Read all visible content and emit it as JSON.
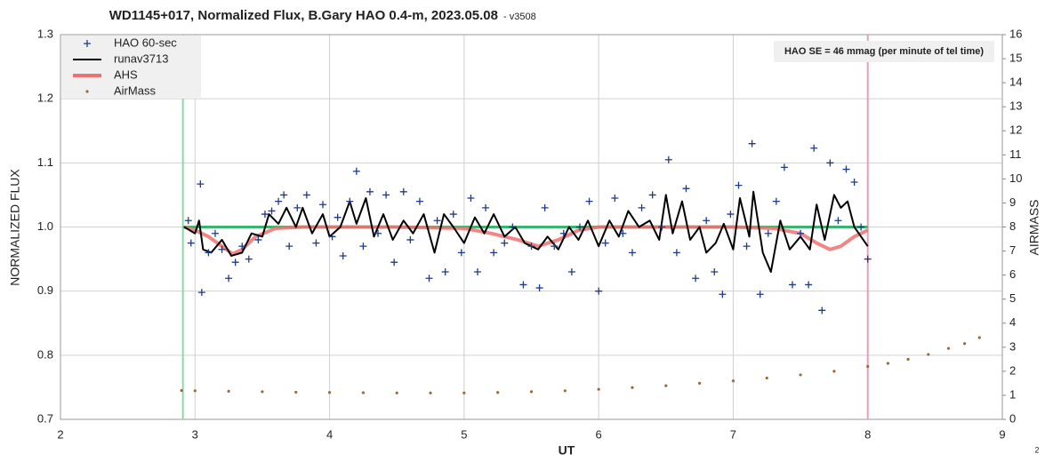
{
  "chart_data": {
    "type": "scatter",
    "title": "WD1145+017, Normalized Flux, B.Gary HAO 0.4-m, 2023.05.08",
    "subtitle": "- v3508",
    "annotation": "HAO SE =  46 mmag (per minute of tel time)",
    "page_number": "2",
    "xlabel": "UT",
    "ylabel": "NORMALIZED FLUX",
    "y2label": "AIRMASS",
    "xlim": [
      2,
      9
    ],
    "xticks": [
      2,
      3,
      4,
      5,
      6,
      7,
      8,
      9
    ],
    "ylim": [
      0.7,
      1.3
    ],
    "yticks": [
      0.7,
      0.8,
      0.9,
      {
        "value": 1,
        "label": "1.0"
      },
      1.1,
      1.2,
      1.3
    ],
    "y2lim": [
      0,
      16
    ],
    "y2ticks": [
      0,
      1,
      2,
      3,
      4,
      5,
      6,
      7,
      8,
      9,
      10,
      11,
      12,
      13,
      14,
      15,
      16
    ],
    "grid": true,
    "legend": "top-left",
    "vlines": [
      {
        "x": 2.91,
        "color": "#8fd6ac"
      },
      {
        "x": 8.0,
        "color": "#e8a0b4"
      }
    ],
    "hlines": [
      {
        "y": 1.0,
        "color": "#3cb371",
        "xrange": [
          2.91,
          8.0
        ]
      }
    ],
    "series": [
      {
        "name": "HAO 60-sec",
        "color": "#1f3a8a",
        "style": "plus",
        "x": [
          2.95,
          2.97,
          3.04,
          3.05,
          3.1,
          3.15,
          3.2,
          3.25,
          3.3,
          3.35,
          3.4,
          3.47,
          3.52,
          3.57,
          3.62,
          3.66,
          3.7,
          3.76,
          3.83,
          3.9,
          3.95,
          4.02,
          4.06,
          4.1,
          4.15,
          4.2,
          4.25,
          4.3,
          4.36,
          4.42,
          4.48,
          4.55,
          4.6,
          4.67,
          4.74,
          4.8,
          4.86,
          4.92,
          4.98,
          5.05,
          5.1,
          5.16,
          5.22,
          5.3,
          5.36,
          5.44,
          5.5,
          5.56,
          5.6,
          5.67,
          5.74,
          5.8,
          5.86,
          5.93,
          6.0,
          6.05,
          6.12,
          6.18,
          6.25,
          6.32,
          6.4,
          6.47,
          6.52,
          6.58,
          6.65,
          6.72,
          6.8,
          6.86,
          6.92,
          6.98,
          7.04,
          7.1,
          7.14,
          7.2,
          7.26,
          7.32,
          7.38,
          7.44,
          7.5,
          7.56,
          7.6,
          7.66,
          7.72,
          7.78,
          7.84,
          7.9,
          7.95,
          8.0
        ],
        "values": [
          1.01,
          0.975,
          1.067,
          0.898,
          0.96,
          0.99,
          0.965,
          0.92,
          0.945,
          0.97,
          0.95,
          0.98,
          1.02,
          1.025,
          1.04,
          1.05,
          0.97,
          1.03,
          1.05,
          0.975,
          1.035,
          0.985,
          1.015,
          0.955,
          1.04,
          1.087,
          0.97,
          1.055,
          0.99,
          1.05,
          0.945,
          1.055,
          0.98,
          1.04,
          0.92,
          1.01,
          0.93,
          1.02,
          0.96,
          1.045,
          0.93,
          1.03,
          0.96,
          0.975,
          1.0,
          0.91,
          0.97,
          0.905,
          1.03,
          0.97,
          0.99,
          0.93,
          1.0,
          1.04,
          0.9,
          0.975,
          1.045,
          0.99,
          0.96,
          1.03,
          1.05,
          1.0,
          1.105,
          0.96,
          1.06,
          0.92,
          1.01,
          0.93,
          0.895,
          1.02,
          1.065,
          0.97,
          1.13,
          0.895,
          0.99,
          1.04,
          1.093,
          0.91,
          0.99,
          0.91,
          1.123,
          0.87,
          1.1,
          1.01,
          1.09,
          1.07,
          1.0,
          0.95
        ]
      },
      {
        "name": "runav3713",
        "color": "#000000",
        "style": "line",
        "x": [
          2.92,
          3.0,
          3.03,
          3.06,
          3.12,
          3.2,
          3.27,
          3.35,
          3.42,
          3.5,
          3.55,
          3.62,
          3.68,
          3.75,
          3.8,
          3.87,
          3.95,
          4.0,
          4.08,
          4.15,
          4.2,
          4.27,
          4.33,
          4.4,
          4.47,
          4.55,
          4.62,
          4.7,
          4.78,
          4.85,
          4.92,
          5.0,
          5.08,
          5.15,
          5.22,
          5.3,
          5.38,
          5.45,
          5.55,
          5.62,
          5.7,
          5.78,
          5.85,
          5.92,
          6.0,
          6.08,
          6.15,
          6.22,
          6.3,
          6.38,
          6.45,
          6.5,
          6.55,
          6.62,
          6.68,
          6.75,
          6.8,
          6.87,
          6.93,
          7.0,
          7.05,
          7.12,
          7.15,
          7.22,
          7.28,
          7.35,
          7.42,
          7.5,
          7.57,
          7.62,
          7.68,
          7.75,
          7.8,
          7.85,
          7.9,
          7.95,
          8.0
        ],
        "values": [
          1.0,
          0.99,
          1.01,
          0.965,
          0.96,
          0.98,
          0.955,
          0.96,
          0.99,
          0.985,
          1.02,
          1.005,
          1.03,
          1.0,
          1.03,
          0.99,
          1.02,
          0.985,
          1.0,
          1.04,
          1.005,
          1.045,
          0.985,
          1.02,
          0.98,
          1.01,
          0.99,
          1.02,
          0.96,
          1.02,
          1.0,
          0.975,
          1.015,
          0.99,
          1.02,
          0.985,
          1.0,
          0.975,
          0.965,
          0.985,
          0.965,
          1.0,
          0.98,
          1.01,
          0.97,
          1.01,
          0.985,
          1.025,
          1.0,
          1.01,
          0.98,
          1.05,
          0.99,
          1.04,
          0.98,
          1.0,
          0.96,
          0.975,
          1.005,
          0.965,
          1.045,
          0.985,
          1.055,
          0.96,
          0.93,
          1.01,
          0.965,
          0.985,
          0.965,
          1.035,
          0.98,
          1.05,
          1.03,
          1.04,
          1.0,
          0.985,
          0.97
        ]
      },
      {
        "name": "AHS",
        "color": "#f07070",
        "style": "thick",
        "x": [
          2.92,
          3.0,
          3.1,
          3.2,
          3.28,
          3.35,
          3.45,
          3.6,
          3.8,
          4.5,
          5.0,
          5.2,
          5.4,
          5.55,
          5.7,
          5.85,
          6.0,
          7.0,
          7.3,
          7.5,
          7.62,
          7.72,
          7.8,
          7.9,
          8.0
        ],
        "values": [
          1.0,
          0.995,
          0.985,
          0.97,
          0.958,
          0.965,
          0.985,
          0.998,
          1.0,
          1.0,
          0.998,
          0.99,
          0.98,
          0.97,
          0.98,
          0.995,
          1.0,
          1.0,
          0.998,
          0.99,
          0.975,
          0.965,
          0.97,
          0.985,
          0.995
        ]
      },
      {
        "name": "AirMass",
        "color": "#9a6a3a",
        "style": "dot",
        "axis": "y2",
        "x": [
          2.9,
          3.0,
          3.25,
          3.5,
          3.75,
          4.0,
          4.25,
          4.5,
          4.75,
          5.0,
          5.25,
          5.5,
          5.75,
          6.0,
          6.25,
          6.5,
          6.75,
          7.0,
          7.25,
          7.5,
          7.75,
          8.0,
          8.15,
          8.3,
          8.45,
          8.6,
          8.72,
          8.83
        ],
        "values": [
          1.2,
          1.19,
          1.17,
          1.15,
          1.13,
          1.12,
          1.11,
          1.1,
          1.1,
          1.1,
          1.12,
          1.15,
          1.19,
          1.25,
          1.32,
          1.4,
          1.5,
          1.6,
          1.72,
          1.85,
          2.0,
          2.2,
          2.33,
          2.5,
          2.7,
          2.95,
          3.15,
          3.4
        ]
      }
    ]
  }
}
